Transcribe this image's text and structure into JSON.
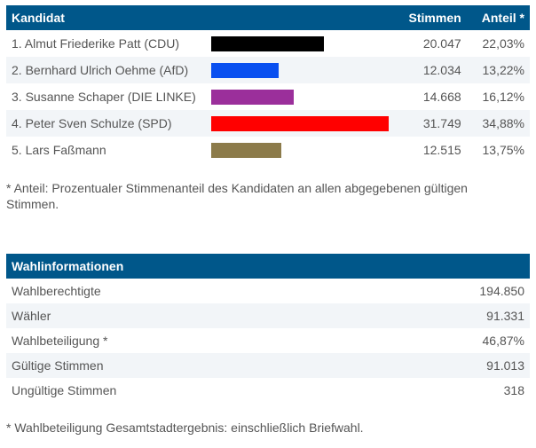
{
  "candidates_table": {
    "headers": {
      "name": "Kandidat",
      "votes": "Stimmen",
      "share": "Anteil *"
    },
    "rows": [
      {
        "name": "1. Almut Friederike Patt (CDU)",
        "votes": "20.047",
        "share": "22,03%",
        "share_value": 22.03,
        "color": "#000000"
      },
      {
        "name": "2. Bernhard Ulrich Oehme (AfD)",
        "votes": "12.034",
        "share": "13,22%",
        "share_value": 13.22,
        "color": "#0a50f0"
      },
      {
        "name": "3. Susanne Schaper (DIE LINKE)",
        "votes": "14.668",
        "share": "16,12%",
        "share_value": 16.12,
        "color": "#9b2f9b"
      },
      {
        "name": "4. Peter Sven Schulze (SPD)",
        "votes": "31.749",
        "share": "34,88%",
        "share_value": 34.88,
        "color": "#ff0000"
      },
      {
        "name": "5. Lars Faßmann",
        "votes": "12.515",
        "share": "13,75%",
        "share_value": 13.75,
        "color": "#8c7b4a"
      }
    ],
    "footnote": "* Anteil: Prozentualer Stimmenanteil des Kandidaten an allen abgegebenen gültigen Stimmen."
  },
  "info_table": {
    "header": "Wahlinformationen",
    "rows": [
      {
        "label": "Wahlberechtigte",
        "value": "194.850"
      },
      {
        "label": "Wähler",
        "value": "91.331"
      },
      {
        "label": "Wahlbeteiligung *",
        "value": "46,87%"
      },
      {
        "label": "Gültige Stimmen",
        "value": "91.013"
      },
      {
        "label": "Ungültige Stimmen",
        "value": "318"
      }
    ],
    "footnote": "* Wahlbeteiligung Gesamtstadtergebnis: einschließlich Briefwahl."
  },
  "colors": {
    "header_bg": "#00578a",
    "alt_row": "#f2f5f8"
  }
}
